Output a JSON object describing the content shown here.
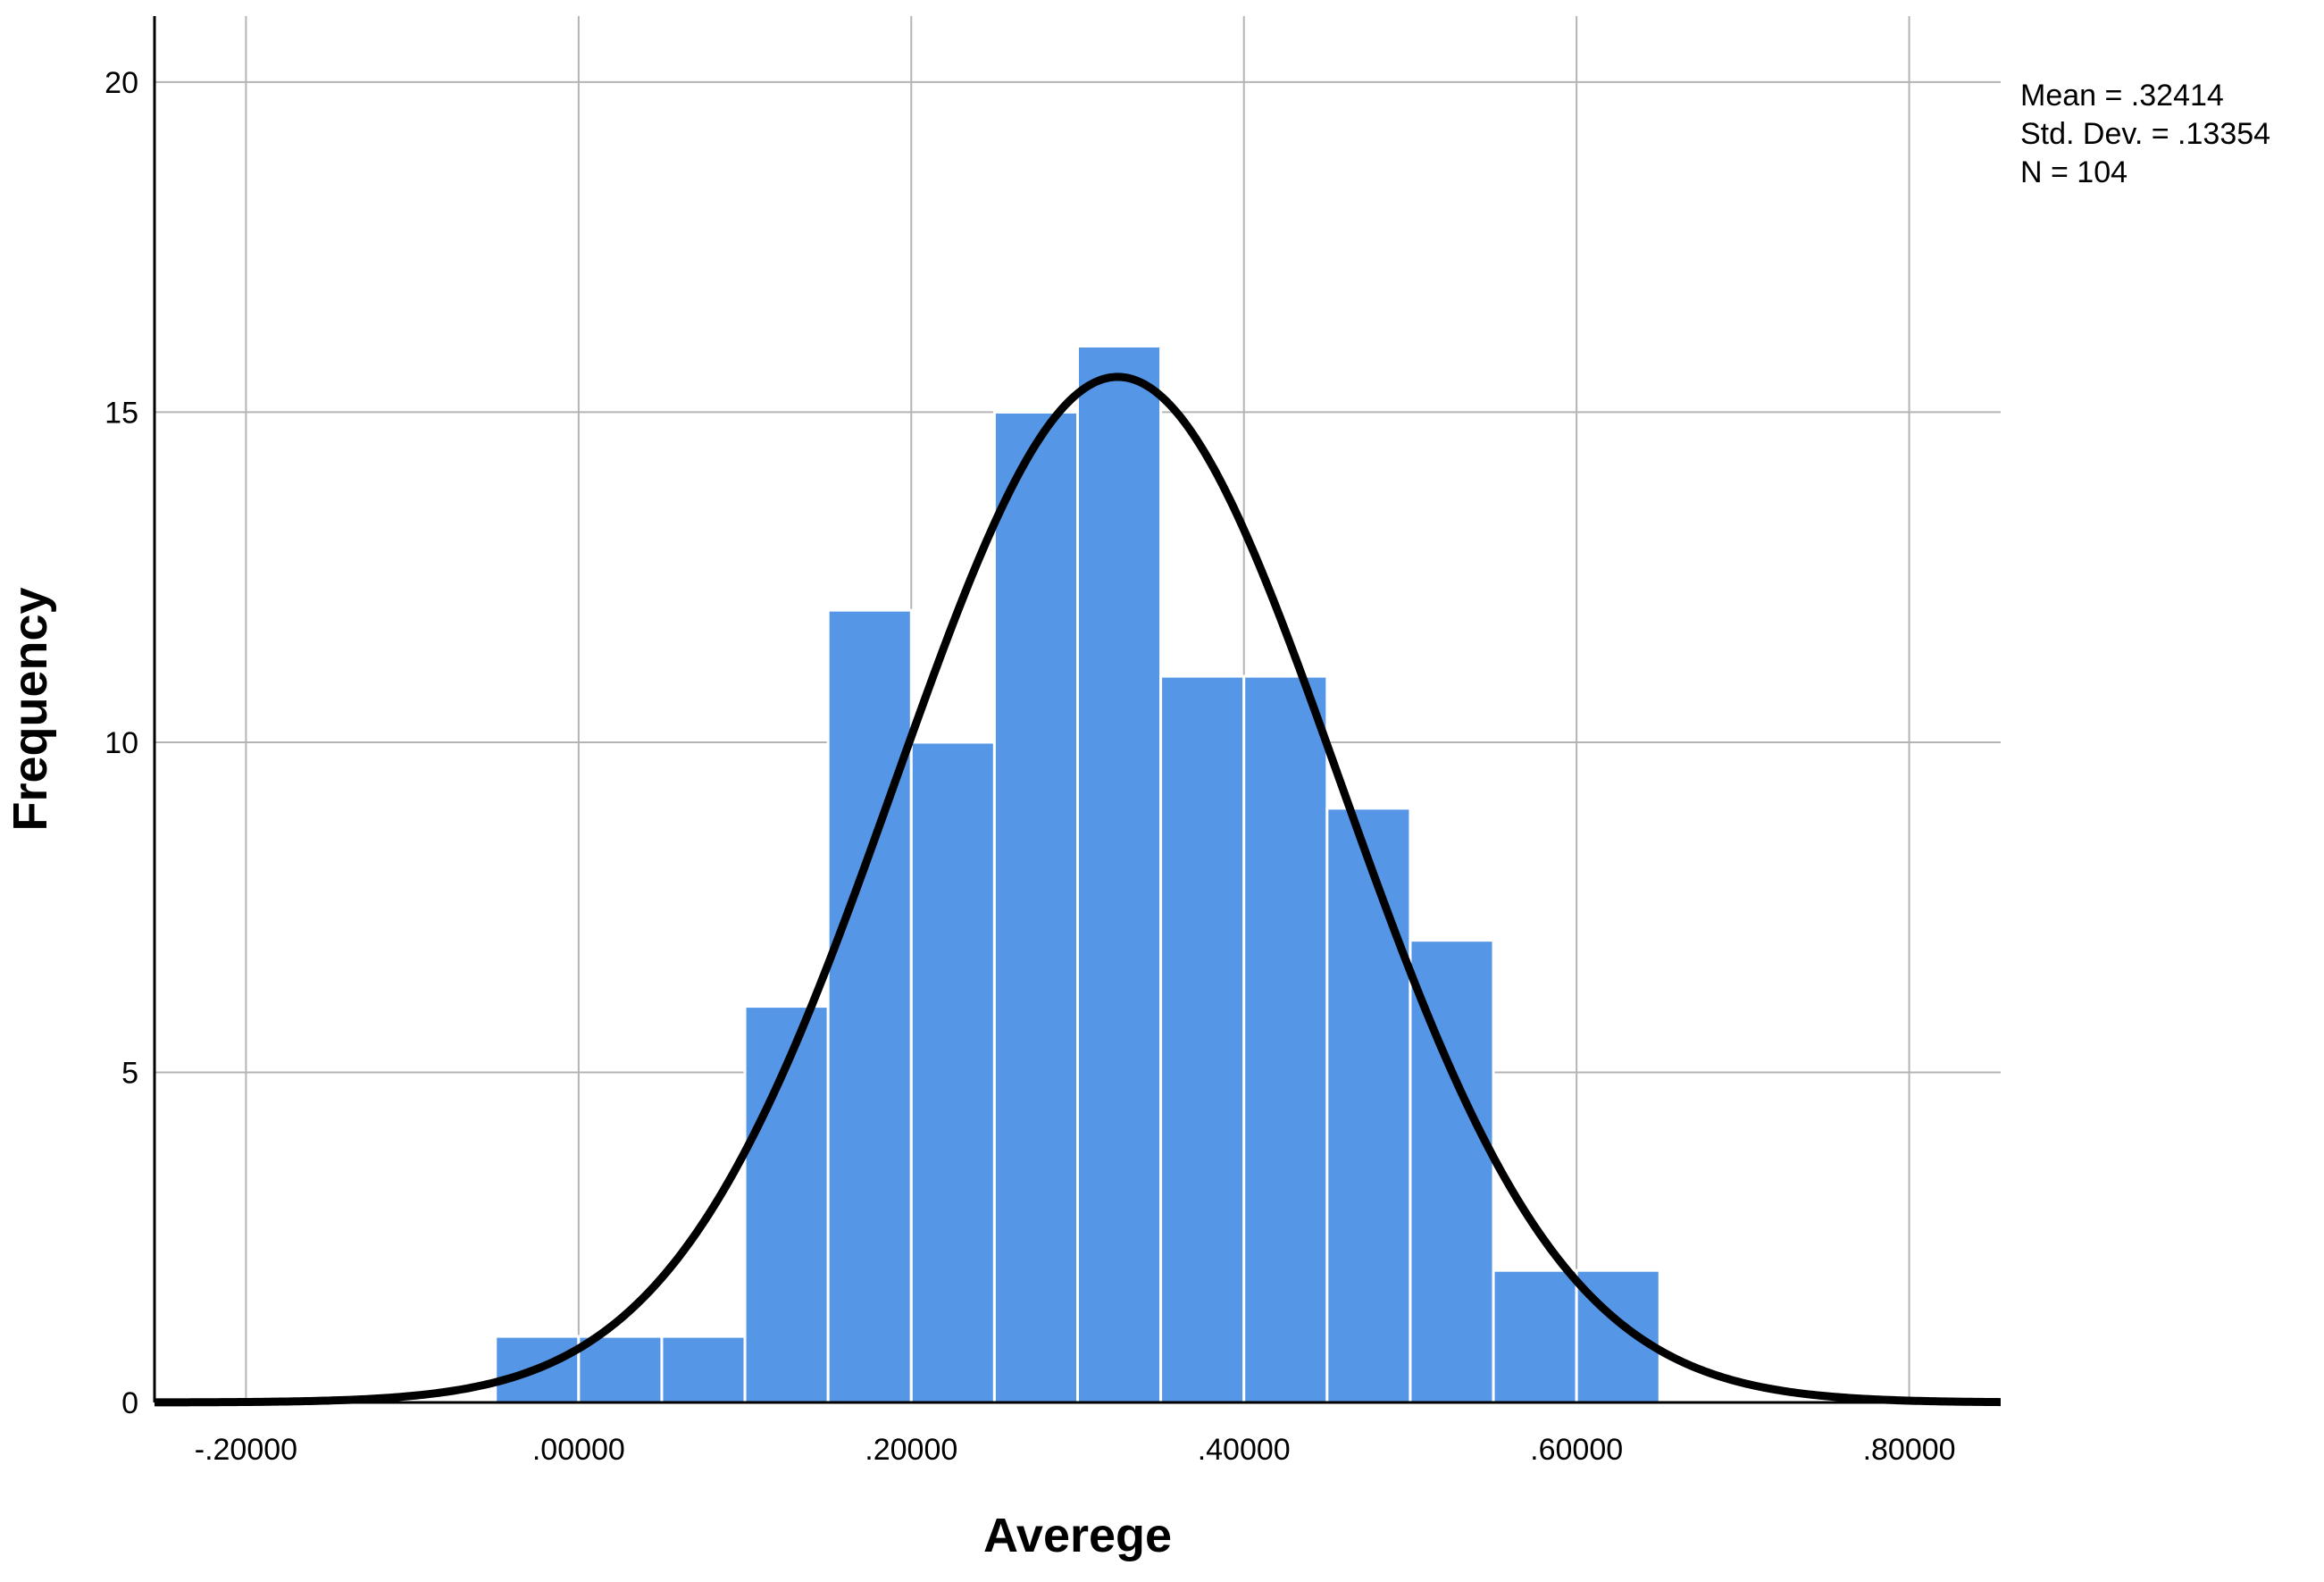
{
  "chart_data": {
    "type": "bar",
    "subtype": "histogram",
    "xlabel": "Averege",
    "ylabel": "Frequency",
    "xlim": [
      -0.255,
      0.855
    ],
    "ylim": [
      0,
      21
    ],
    "x_ticks": [
      -0.2,
      0.0,
      0.2,
      0.4,
      0.6,
      0.8
    ],
    "x_tick_labels": [
      "-.20000",
      ".00000",
      ".20000",
      ".40000",
      ".60000",
      ".80000"
    ],
    "y_ticks": [
      0,
      5,
      10,
      15,
      20
    ],
    "y_tick_labels": [
      "0",
      "5",
      "10",
      "15",
      "20"
    ],
    "bin_width": 0.05,
    "bins": [
      {
        "start": -0.05,
        "end": 0.0,
        "count": 1
      },
      {
        "start": 0.0,
        "end": 0.05,
        "count": 1
      },
      {
        "start": 0.05,
        "end": 0.1,
        "count": 1
      },
      {
        "start": 0.1,
        "end": 0.15,
        "count": 6
      },
      {
        "start": 0.15,
        "end": 0.2,
        "count": 12
      },
      {
        "start": 0.2,
        "end": 0.25,
        "count": 10
      },
      {
        "start": 0.25,
        "end": 0.3,
        "count": 15
      },
      {
        "start": 0.3,
        "end": 0.35,
        "count": 16
      },
      {
        "start": 0.35,
        "end": 0.4,
        "count": 11
      },
      {
        "start": 0.4,
        "end": 0.45,
        "count": 11
      },
      {
        "start": 0.45,
        "end": 0.5,
        "count": 9
      },
      {
        "start": 0.5,
        "end": 0.55,
        "count": 7
      },
      {
        "start": 0.55,
        "end": 0.6,
        "count": 2
      },
      {
        "start": 0.6,
        "end": 0.65,
        "count": 2
      }
    ],
    "normal_curve": {
      "mean": 0.32414,
      "std_dev": 0.13354,
      "n": 104
    },
    "stats_labels": [
      "Mean = .32414",
      "Std. Dev. = .13354",
      "N = 104"
    ],
    "grid": true,
    "colors": {
      "bar": "#5596e6",
      "bar_edge": "#ffffff",
      "curve": "#000000",
      "grid": "#b4b4b4",
      "axis": "#000000"
    }
  }
}
